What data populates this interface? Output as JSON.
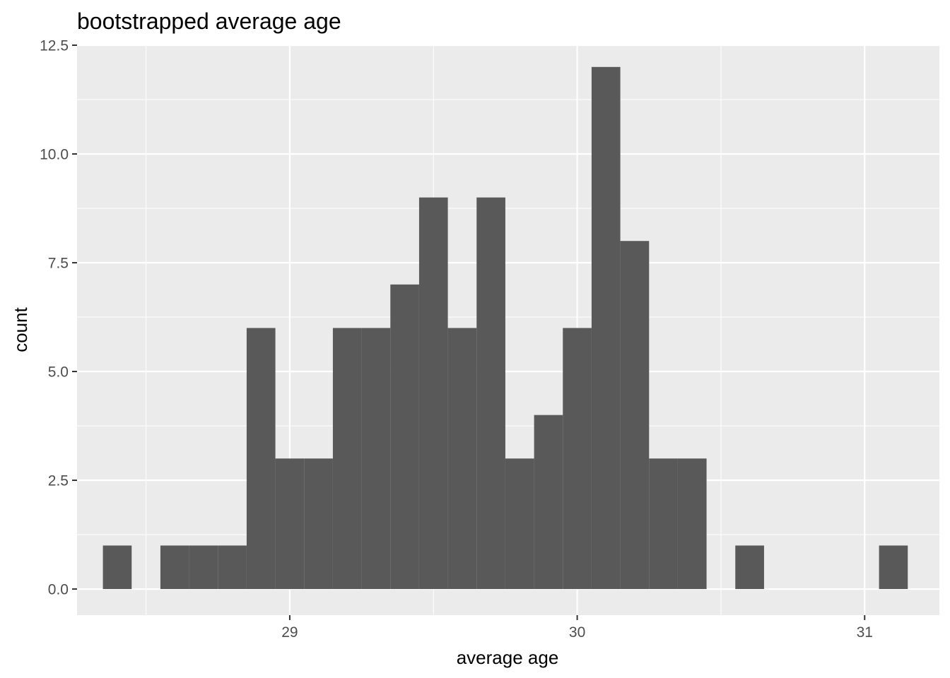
{
  "chart_data": {
    "type": "bar",
    "title": "bootstrapped average age",
    "xlabel": "average age",
    "ylabel": "count",
    "xlim": [
      28.26,
      31.26
    ],
    "ylim": [
      -0.6,
      12.5
    ],
    "x_ticks": [
      29,
      30,
      31
    ],
    "x_tick_labels": [
      "29",
      "30",
      "31"
    ],
    "y_ticks": [
      0,
      2.5,
      5,
      7.5,
      10,
      12.5
    ],
    "y_tick_labels": [
      "0.0",
      "2.5",
      "5.0",
      "7.5",
      "10.0",
      "12.5"
    ],
    "bin_width": 0.1,
    "bins": [
      {
        "x_start": 28.35,
        "x_end": 28.45,
        "count": 1
      },
      {
        "x_start": 28.45,
        "x_end": 28.55,
        "count": 0
      },
      {
        "x_start": 28.55,
        "x_end": 28.65,
        "count": 1
      },
      {
        "x_start": 28.65,
        "x_end": 28.75,
        "count": 1
      },
      {
        "x_start": 28.75,
        "x_end": 28.85,
        "count": 1
      },
      {
        "x_start": 28.85,
        "x_end": 28.95,
        "count": 6
      },
      {
        "x_start": 28.95,
        "x_end": 29.05,
        "count": 3
      },
      {
        "x_start": 29.05,
        "x_end": 29.15,
        "count": 3
      },
      {
        "x_start": 29.15,
        "x_end": 29.25,
        "count": 6
      },
      {
        "x_start": 29.25,
        "x_end": 29.35,
        "count": 6
      },
      {
        "x_start": 29.35,
        "x_end": 29.45,
        "count": 7
      },
      {
        "x_start": 29.45,
        "x_end": 29.55,
        "count": 9
      },
      {
        "x_start": 29.55,
        "x_end": 29.65,
        "count": 6
      },
      {
        "x_start": 29.65,
        "x_end": 29.75,
        "count": 9
      },
      {
        "x_start": 29.75,
        "x_end": 29.85,
        "count": 3
      },
      {
        "x_start": 29.85,
        "x_end": 29.95,
        "count": 4
      },
      {
        "x_start": 29.95,
        "x_end": 30.05,
        "count": 6
      },
      {
        "x_start": 30.05,
        "x_end": 30.15,
        "count": 12
      },
      {
        "x_start": 30.15,
        "x_end": 30.25,
        "count": 8
      },
      {
        "x_start": 30.25,
        "x_end": 30.35,
        "count": 3
      },
      {
        "x_start": 30.35,
        "x_end": 30.45,
        "count": 3
      },
      {
        "x_start": 30.45,
        "x_end": 30.55,
        "count": 0
      },
      {
        "x_start": 30.55,
        "x_end": 30.65,
        "count": 1
      },
      {
        "x_start": 30.65,
        "x_end": 30.75,
        "count": 0
      },
      {
        "x_start": 30.75,
        "x_end": 30.85,
        "count": 0
      },
      {
        "x_start": 30.85,
        "x_end": 30.95,
        "count": 0
      },
      {
        "x_start": 30.95,
        "x_end": 31.05,
        "count": 0
      },
      {
        "x_start": 31.05,
        "x_end": 31.15,
        "count": 1
      }
    ],
    "grid": true,
    "colors": {
      "bar": "#595959",
      "panel": "#ebebeb",
      "grid": "#ffffff",
      "tick_text": "#4d4d4d",
      "tick": "#333333"
    }
  }
}
